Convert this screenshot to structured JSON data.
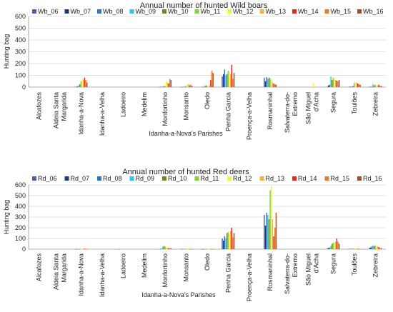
{
  "chart_data": [
    {
      "type": "bar",
      "title": "Annual number of hunted Wild boars",
      "xlabel": "Idanha-a-Nova's Parishes",
      "ylabel": "Hunting bag",
      "ylim": [
        0,
        600
      ],
      "yticks": [
        0,
        100,
        200,
        300,
        400,
        500,
        600
      ],
      "grid": true,
      "legend_position": "top",
      "categories": [
        "Alcafozes",
        "Aldeia Santa Margarida",
        "Idanha-a-Nova",
        "Idanha-a-Velha",
        "Ladoeiro",
        "Medelim",
        "Monfortinho",
        "Monsanto",
        "Oledo",
        "Penha Garcia",
        "Proença-a-Velha",
        "Rosmaninhal",
        "Salvaterra-do-Extremo",
        "São Miguel d'Acha",
        "Segura",
        "Toulões",
        "Zebreira"
      ],
      "tick_labels": [
        [
          "Alcafozes"
        ],
        [
          "Aldeia Santa",
          "Margarida"
        ],
        [
          "Idanha-a-Nova"
        ],
        [
          "Idanha-a-Velha"
        ],
        [
          "Ladoeiro"
        ],
        [
          "Medelim"
        ],
        [
          "Monfortinho"
        ],
        [
          "Monsanto"
        ],
        [
          "Oledo"
        ],
        [
          "Penha Garcia"
        ],
        [
          "Proença-a-Velha"
        ],
        [
          "Rosmaninhal"
        ],
        [
          "Salvaterra-do-",
          "Extremo"
        ],
        [
          "São Miguel",
          "d'Acha"
        ],
        [
          "Segura"
        ],
        [
          "Toulões"
        ],
        [
          "Zebreira"
        ]
      ],
      "series": [
        {
          "name": "Wb_06",
          "color": "#4f5fa8",
          "values": [
            0,
            0,
            2,
            0,
            0,
            0,
            1,
            0,
            0,
            90,
            0,
            80,
            0,
            0,
            5,
            0,
            2
          ]
        },
        {
          "name": "Wb_07",
          "color": "#1f3b73",
          "values": [
            0,
            0,
            3,
            0,
            0,
            0,
            2,
            2,
            2,
            110,
            0,
            50,
            0,
            0,
            15,
            2,
            3
          ]
        },
        {
          "name": "Wb_08",
          "color": "#2e75c8",
          "values": [
            0,
            0,
            8,
            0,
            0,
            0,
            2,
            3,
            3,
            150,
            0,
            85,
            0,
            0,
            20,
            5,
            4
          ]
        },
        {
          "name": "Wb_09",
          "color": "#33c3f0",
          "values": [
            0,
            0,
            15,
            0,
            1,
            0,
            5,
            5,
            10,
            100,
            0,
            70,
            0,
            0,
            90,
            5,
            25
          ]
        },
        {
          "name": "Wb_10",
          "color": "#7f7f20",
          "values": [
            0,
            0,
            25,
            0,
            0,
            0,
            8,
            5,
            15,
            110,
            0,
            80,
            0,
            0,
            60,
            10,
            15
          ]
        },
        {
          "name": "Wb_11",
          "color": "#7ed23a",
          "values": [
            0,
            0,
            50,
            0,
            0,
            0,
            10,
            10,
            10,
            140,
            0,
            75,
            0,
            0,
            80,
            35,
            20
          ]
        },
        {
          "name": "Wb_12",
          "color": "#f4f43a",
          "values": [
            0,
            0,
            60,
            0,
            0,
            0,
            50,
            20,
            10,
            130,
            0,
            60,
            0,
            40,
            75,
            45,
            10
          ]
        },
        {
          "name": "Wb_13",
          "color": "#f2b33d",
          "values": [
            0,
            0,
            65,
            0,
            0,
            0,
            40,
            25,
            15,
            110,
            0,
            40,
            0,
            0,
            60,
            40,
            15
          ]
        },
        {
          "name": "Wb_14",
          "color": "#e8271f",
          "values": [
            0,
            0,
            80,
            0,
            0,
            0,
            30,
            15,
            60,
            190,
            0,
            30,
            0,
            0,
            55,
            30,
            20
          ]
        },
        {
          "name": "Wb_15",
          "color": "#e97a2a",
          "values": [
            0,
            0,
            60,
            0,
            0,
            0,
            70,
            20,
            140,
            70,
            0,
            25,
            0,
            0,
            50,
            25,
            10
          ]
        },
        {
          "name": "Wb_16",
          "color": "#a0522d",
          "values": [
            0,
            0,
            40,
            0,
            0,
            0,
            60,
            10,
            120,
            120,
            0,
            20,
            0,
            0,
            60,
            20,
            10
          ]
        }
      ]
    },
    {
      "type": "bar",
      "title": "Annual number of hunted Red deers",
      "xlabel": "Idanha-a-Nova's Parishes",
      "ylabel": "Hunting bag",
      "ylim": [
        0,
        600
      ],
      "yticks": [
        0,
        100,
        200,
        300,
        400,
        500,
        600
      ],
      "grid": true,
      "legend_position": "top",
      "categories": [
        "Alcafozes",
        "Aldeia Santa Margarida",
        "Idanha-a-Nova",
        "Idanha-a-Velha",
        "Ladoeiro",
        "Medelim",
        "Monfortinho",
        "Monsanto",
        "Oledo",
        "Penha Garcia",
        "Proença-a-Velha",
        "Rosmaninhal",
        "Salvaterra-do-Extremo",
        "São Miguel d'Acha",
        "Segura",
        "Toulões",
        "Zebreira"
      ],
      "tick_labels": [
        [
          "Alcafozes"
        ],
        [
          "Aldeia Santa",
          "Margarida"
        ],
        [
          "Idanha-a-Nova"
        ],
        [
          "Idanha-a-Velha"
        ],
        [
          "Ladoeiro"
        ],
        [
          "Medelim"
        ],
        [
          "Monfortinho"
        ],
        [
          "Monsanto"
        ],
        [
          "Oledo"
        ],
        [
          "Penha Garcia"
        ],
        [
          "Proença-a-Velha"
        ],
        [
          "Rosmaninhal"
        ],
        [
          "Salvaterra-do-",
          "Extremo"
        ],
        [
          "São Miguel",
          "d'Acha"
        ],
        [
          "Segura"
        ],
        [
          "Toulões"
        ],
        [
          "Zebreira"
        ]
      ],
      "series": [
        {
          "name": "Rd_06",
          "color": "#4f5fa8",
          "values": [
            0,
            0,
            0,
            0,
            0,
            0,
            0,
            0,
            0,
            100,
            0,
            320,
            0,
            0,
            10,
            2,
            15
          ]
        },
        {
          "name": "Rd_07",
          "color": "#1f3b73",
          "values": [
            0,
            0,
            1,
            0,
            0,
            0,
            2,
            2,
            1,
            80,
            0,
            220,
            0,
            0,
            10,
            2,
            15
          ]
        },
        {
          "name": "Rd_08",
          "color": "#2e75c8",
          "values": [
            0,
            0,
            2,
            0,
            1,
            0,
            5,
            3,
            2,
            120,
            0,
            340,
            0,
            0,
            15,
            3,
            25
          ]
        },
        {
          "name": "Rd_09",
          "color": "#33c3f0",
          "values": [
            0,
            0,
            2,
            0,
            0,
            0,
            20,
            3,
            2,
            100,
            0,
            320,
            0,
            0,
            30,
            5,
            35
          ]
        },
        {
          "name": "Rd_10",
          "color": "#7f7f20",
          "values": [
            0,
            0,
            3,
            0,
            0,
            0,
            30,
            3,
            3,
            150,
            0,
            280,
            0,
            0,
            50,
            5,
            30
          ]
        },
        {
          "name": "Rd_11",
          "color": "#7ed23a",
          "values": [
            0,
            0,
            3,
            0,
            0,
            0,
            25,
            5,
            3,
            160,
            0,
            550,
            0,
            0,
            60,
            5,
            35
          ]
        },
        {
          "name": "Rd_12",
          "color": "#f4f43a",
          "values": [
            0,
            0,
            3,
            0,
            0,
            0,
            20,
            5,
            2,
            150,
            0,
            590,
            0,
            0,
            60,
            5,
            30
          ]
        },
        {
          "name": "Rd_13",
          "color": "#f2b33d",
          "values": [
            0,
            0,
            5,
            0,
            0,
            0,
            15,
            3,
            2,
            170,
            0,
            280,
            0,
            0,
            70,
            5,
            25
          ]
        },
        {
          "name": "Rd_14",
          "color": "#e8271f",
          "values": [
            0,
            0,
            5,
            0,
            0,
            0,
            10,
            2,
            2,
            200,
            0,
            120,
            0,
            0,
            100,
            5,
            20
          ]
        },
        {
          "name": "Rd_15",
          "color": "#e97a2a",
          "values": [
            0,
            0,
            3,
            0,
            0,
            0,
            8,
            2,
            2,
            110,
            0,
            200,
            0,
            0,
            70,
            3,
            10
          ]
        },
        {
          "name": "Rd_16",
          "color": "#a0522d",
          "values": [
            0,
            0,
            3,
            0,
            0,
            0,
            10,
            2,
            2,
            150,
            0,
            340,
            0,
            0,
            50,
            3,
            10
          ]
        }
      ]
    }
  ]
}
